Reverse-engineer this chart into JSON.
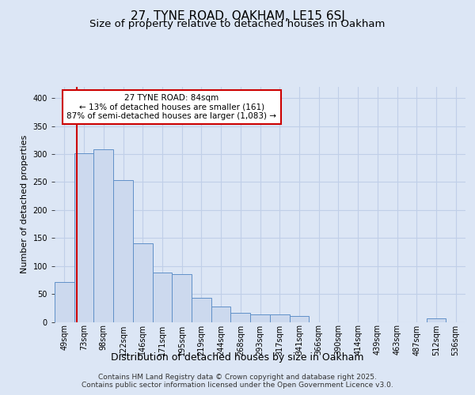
{
  "title1": "27, TYNE ROAD, OAKHAM, LE15 6SJ",
  "title2": "Size of property relative to detached houses in Oakham",
  "xlabel": "Distribution of detached houses by size in Oakham",
  "ylabel": "Number of detached properties",
  "bar_labels": [
    "49sqm",
    "73sqm",
    "98sqm",
    "122sqm",
    "146sqm",
    "171sqm",
    "195sqm",
    "219sqm",
    "244sqm",
    "268sqm",
    "293sqm",
    "317sqm",
    "341sqm",
    "366sqm",
    "390sqm",
    "414sqm",
    "439sqm",
    "463sqm",
    "487sqm",
    "512sqm",
    "536sqm"
  ],
  "bar_values": [
    72,
    302,
    308,
    253,
    141,
    88,
    85,
    43,
    27,
    16,
    14,
    14,
    10,
    0,
    0,
    0,
    0,
    0,
    0,
    7,
    0
  ],
  "bar_color": "#ccd9ee",
  "bar_edge_color": "#6090c8",
  "annotation_box_text": "27 TYNE ROAD: 84sqm\n← 13% of detached houses are smaller (161)\n87% of semi-detached houses are larger (1,083) →",
  "annotation_box_color": "#ffffff",
  "annotation_box_edge_color": "#cc0000",
  "vline_color": "#cc0000",
  "grid_color": "#c0cfe8",
  "bg_color": "#dce6f5",
  "plot_bg_color": "#dce6f5",
  "footer_text": "Contains HM Land Registry data © Crown copyright and database right 2025.\nContains public sector information licensed under the Open Government Licence v3.0.",
  "ylim": [
    0,
    420
  ],
  "yticks": [
    0,
    50,
    100,
    150,
    200,
    250,
    300,
    350,
    400
  ],
  "title1_fontsize": 11,
  "title2_fontsize": 9.5,
  "xlabel_fontsize": 9,
  "ylabel_fontsize": 8,
  "tick_fontsize": 7,
  "footer_fontsize": 6.5,
  "ann_fontsize": 7.5
}
